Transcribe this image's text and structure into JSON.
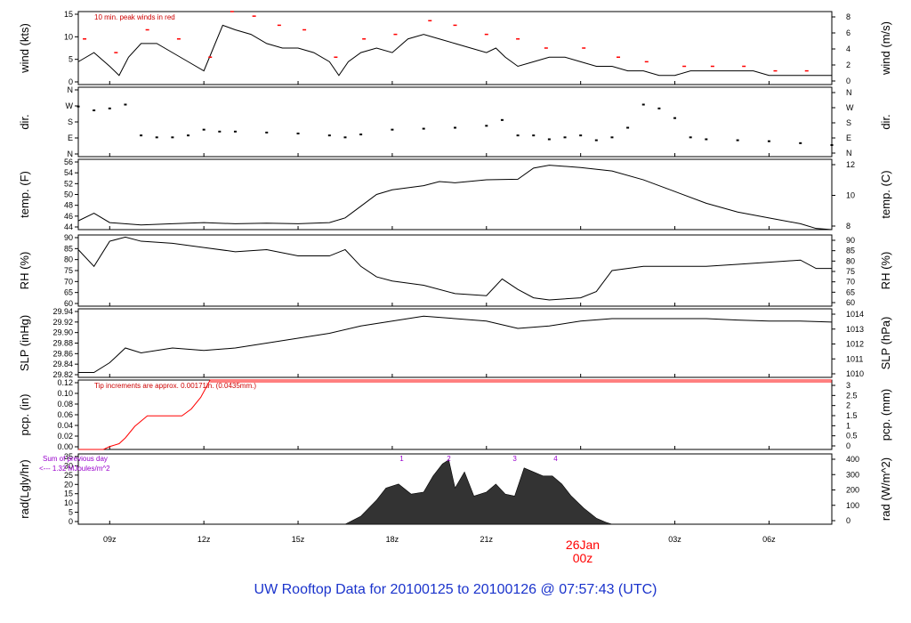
{
  "chart_data": {
    "type": "line",
    "title": "UW Rooftop Data for 20100125  to  20100126 @ 07:57:43  (UTC)",
    "colors": {
      "trace": "#000000",
      "peak": "#ff0000",
      "precip": "#ff0000",
      "purple": "#9900cc",
      "title": "#1a33cc",
      "date_marker": "#ff0000",
      "radiation_fill": "#333333"
    },
    "x_axis": {
      "unit": "UTC hour",
      "range": [
        8,
        32
      ],
      "ticks": [
        {
          "x": 9,
          "label": "09z"
        },
        {
          "x": 12,
          "label": "12z"
        },
        {
          "x": 15,
          "label": "15z"
        },
        {
          "x": 18,
          "label": "18z"
        },
        {
          "x": 21,
          "label": "21z"
        },
        {
          "x": 24,
          "label": ""
        },
        {
          "x": 27,
          "label": "03z"
        },
        {
          "x": 30,
          "label": "06z"
        }
      ],
      "date_marker": {
        "x": 24,
        "date": "26Jan",
        "hour": "00z"
      }
    },
    "panels": [
      {
        "id": "wind",
        "ylabel_left": "wind (kts)",
        "ylabel_right": "wind (m/s)",
        "ylim": [
          0,
          16
        ],
        "left_ticks": [
          "0",
          "5",
          "10",
          "15"
        ],
        "right_ticks": [
          "0",
          "2",
          "4",
          "6",
          "8"
        ],
        "note": "10 min. peak winds in red",
        "series": [
          {
            "name": "wind",
            "x": [
              8,
              8.5,
              9,
              9.3,
              9.6,
              10,
              10.5,
              11,
              11.5,
              12,
              12.3,
              12.6,
              13,
              13.5,
              14,
              14.5,
              15,
              15.5,
              16,
              16.3,
              16.6,
              17,
              17.5,
              18,
              18.5,
              19,
              19.5,
              20,
              20.5,
              21,
              21.3,
              21.6,
              22,
              22.5,
              23,
              23.5,
              24,
              24.5,
              25,
              25.5,
              26,
              26.5,
              27,
              27.5,
              28,
              28.5,
              29,
              29.5,
              30,
              30.5,
              31,
              31.5,
              32
            ],
            "y": [
              5,
              7,
              4,
              2,
              6,
              9,
              9,
              7,
              5,
              3,
              8,
              13,
              12,
              11,
              9,
              8,
              8,
              7,
              5,
              2,
              5,
              7,
              8,
              7,
              10,
              11,
              10,
              9,
              8,
              7,
              8,
              6,
              4,
              5,
              6,
              6,
              5,
              4,
              4,
              3,
              3,
              2,
              2,
              3,
              3,
              3,
              3,
              3,
              2,
              2,
              2,
              2,
              2
            ]
          },
          {
            "name": "10 min. peak winds",
            "x": [
              8.2,
              9.2,
              10.2,
              11.2,
              12.2,
              12.9,
              13.6,
              14.4,
              15.2,
              16.2,
              17.1,
              18.1,
              19.2,
              20.0,
              21.0,
              22.0,
              22.9,
              24.1,
              25.2,
              26.1,
              27.3,
              28.2,
              29.2,
              30.2,
              31.2
            ],
            "y": [
              10,
              7,
              12,
              10,
              6,
              16,
              15,
              13,
              12,
              6,
              10,
              11,
              14,
              13,
              11,
              10,
              8,
              8,
              6,
              5,
              4,
              4,
              4,
              3,
              3
            ]
          }
        ]
      },
      {
        "id": "dir",
        "ylabel_left": "dir.",
        "ylabel_right": "dir.",
        "ylim": [
          0,
          360
        ],
        "left_ticks": [
          "N",
          "E",
          "S",
          "W",
          "N"
        ],
        "right_ticks": [
          "N",
          "E",
          "S",
          "W",
          "N"
        ],
        "series": [
          {
            "name": "direction",
            "x": [
              8,
              8.5,
              9,
              9.5,
              10,
              10.5,
              11,
              11.5,
              12,
              12.5,
              13,
              14,
              15,
              16,
              16.5,
              17,
              18,
              19,
              20,
              21,
              21.5,
              22,
              22.5,
              23,
              23.5,
              24,
              24.5,
              25,
              25.5,
              26,
              26.5,
              27,
              27.5,
              28,
              29,
              30,
              31,
              32
            ],
            "y": [
              260,
              240,
              250,
              270,
              110,
              100,
              100,
              110,
              140,
              130,
              130,
              125,
              120,
              110,
              100,
              115,
              140,
              145,
              150,
              160,
              190,
              110,
              110,
              90,
              100,
              110,
              85,
              100,
              150,
              270,
              250,
              200,
              100,
              90,
              85,
              80,
              70,
              60
            ]
          }
        ]
      },
      {
        "id": "temp",
        "ylabel_left": "temp. (F)",
        "ylabel_right": "temp. (C)",
        "ylim": [
          44,
          56
        ],
        "left_ticks": [
          "44",
          "46",
          "48",
          "50",
          "52",
          "54",
          "56"
        ],
        "right_ticks": [
          "8",
          "10",
          "12"
        ],
        "series": [
          {
            "name": "temperature",
            "x": [
              8,
              8.5,
              9,
              10,
              11,
              12,
              13,
              14,
              15,
              16,
              16.5,
              17,
              17.5,
              18,
              19,
              19.5,
              20,
              21,
              22,
              22.5,
              23,
              24,
              25,
              26,
              27,
              28,
              29,
              30,
              31,
              31.5,
              32
            ],
            "y": [
              45.5,
              46.8,
              45.2,
              44.8,
              45,
              45.2,
              45,
              45.1,
              45,
              45.2,
              46,
              48,
              50,
              50.8,
              51.5,
              52.2,
              52,
              52.5,
              52.6,
              54.5,
              55,
              54.6,
              54,
              52.5,
              50.5,
              48.5,
              47,
              46,
              45,
              44.2,
              44
            ]
          }
        ]
      },
      {
        "id": "rh",
        "ylabel_left": "RH (%)",
        "ylabel_right": "RH (%)",
        "ylim": [
          58,
          92
        ],
        "left_ticks": [
          "60",
          "65",
          "70",
          "75",
          "80",
          "85",
          "90"
        ],
        "right_ticks": [
          "60",
          "65",
          "70",
          "75",
          "80",
          "85",
          "90"
        ],
        "series": [
          {
            "name": "relative humidity",
            "x": [
              8,
              8.5,
              9,
              9.5,
              10,
              11,
              12,
              13,
              14,
              15,
              16,
              16.5,
              17,
              17.5,
              18,
              19,
              20,
              21,
              21.5,
              22,
              22.5,
              23,
              24,
              24.5,
              25,
              26,
              27,
              28,
              29,
              30,
              31,
              31.5,
              32
            ],
            "y": [
              85,
              77,
              89,
              91,
              89,
              88,
              86,
              84,
              85,
              82,
              82,
              85,
              77,
              72,
              70,
              68,
              64,
              63,
              71,
              66,
              62,
              61,
              62,
              65,
              75,
              77,
              77,
              77,
              78,
              79,
              80,
              76,
              76
            ]
          }
        ]
      },
      {
        "id": "slp",
        "ylabel_left": "SLP (inHg)",
        "ylabel_right": "SLP (hPa)",
        "ylim": [
          29.82,
          29.96
        ],
        "left_ticks": [
          "29.82",
          "29.84",
          "29.86",
          "29.88",
          "29.90",
          "29.92",
          "29.94"
        ],
        "right_ticks": [
          "1010",
          "1011",
          "1012",
          "1013",
          "1014"
        ],
        "series": [
          {
            "name": "sea level pressure",
            "x": [
              8,
              8.5,
              9,
              9.5,
              10,
              11,
              12,
              13,
              14,
              15,
              16,
              17,
              18,
              19,
              20,
              21,
              22,
              23,
              24,
              25,
              26,
              27,
              28,
              29,
              30,
              31,
              32
            ],
            "y": [
              29.83,
              29.83,
              29.85,
              29.88,
              29.87,
              29.88,
              29.875,
              29.88,
              29.89,
              29.9,
              29.91,
              29.925,
              29.935,
              29.945,
              29.94,
              29.935,
              29.92,
              29.925,
              29.935,
              29.94,
              29.94,
              29.94,
              29.94,
              29.937,
              29.935,
              29.935,
              29.933
            ]
          }
        ]
      },
      {
        "id": "pcp",
        "ylabel_left": "pcp. (in)",
        "ylabel_right": "pcp. (mm)",
        "ylim": [
          0,
          0.12
        ],
        "left_ticks": [
          "0.00",
          "0.02",
          "0.04",
          "0.06",
          "0.08",
          "0.10",
          "0.12"
        ],
        "right_ticks": [
          "0",
          "0.5",
          "1",
          "1.5",
          "2",
          "2.5",
          "3"
        ],
        "note": "Tip increments are approx. 0.00171in. (0.0435mm.)",
        "series": [
          {
            "name": "precipitation",
            "x": [
              8,
              8.8,
              9.0,
              9.3,
              9.5,
              9.8,
              10.2,
              10.8,
              11.3,
              11.6,
              11.9,
              12.2,
              32
            ],
            "y": [
              0,
              0,
              0.005,
              0.01,
              0.02,
              0.04,
              0.058,
              0.058,
              0.058,
              0.07,
              0.09,
              0.12,
              0.12
            ]
          }
        ]
      },
      {
        "id": "rad",
        "ylabel_left": "rad(Lgly/hr)",
        "ylabel_right": "rad (W/m^2)",
        "ylim": [
          0,
          35
        ],
        "left_ticks": [
          "0",
          "5",
          "10",
          "15",
          "20",
          "25",
          "30",
          "35"
        ],
        "right_ticks": [
          "0",
          "100",
          "200",
          "300",
          "400"
        ],
        "note_line1": "Sum of previous day",
        "note_line2": "<--- 1.32 MJoules/m^2",
        "markers": [
          {
            "x": 18.3,
            "label": "1"
          },
          {
            "x": 19.8,
            "label": "2"
          },
          {
            "x": 21.9,
            "label": "3"
          },
          {
            "x": 23.2,
            "label": "4"
          }
        ],
        "series": [
          {
            "name": "radiation",
            "x": [
              8,
              16.5,
              17,
              17.5,
              17.8,
              18.2,
              18.6,
              19,
              19.3,
              19.6,
              19.8,
              20,
              20.3,
              20.6,
              21,
              21.3,
              21.6,
              21.9,
              22.2,
              22.5,
              22.8,
              23.1,
              23.4,
              23.7,
              24.1,
              24.5,
              24.8,
              25,
              32
            ],
            "y": [
              0,
              0,
              4,
              12,
              18,
              20,
              15,
              16,
              24,
              30,
              32,
              18,
              26,
              14,
              16,
              20,
              15,
              14,
              28,
              26,
              24,
              24,
              20,
              14,
              8,
              3,
              1,
              0,
              0
            ]
          }
        ]
      }
    ]
  }
}
